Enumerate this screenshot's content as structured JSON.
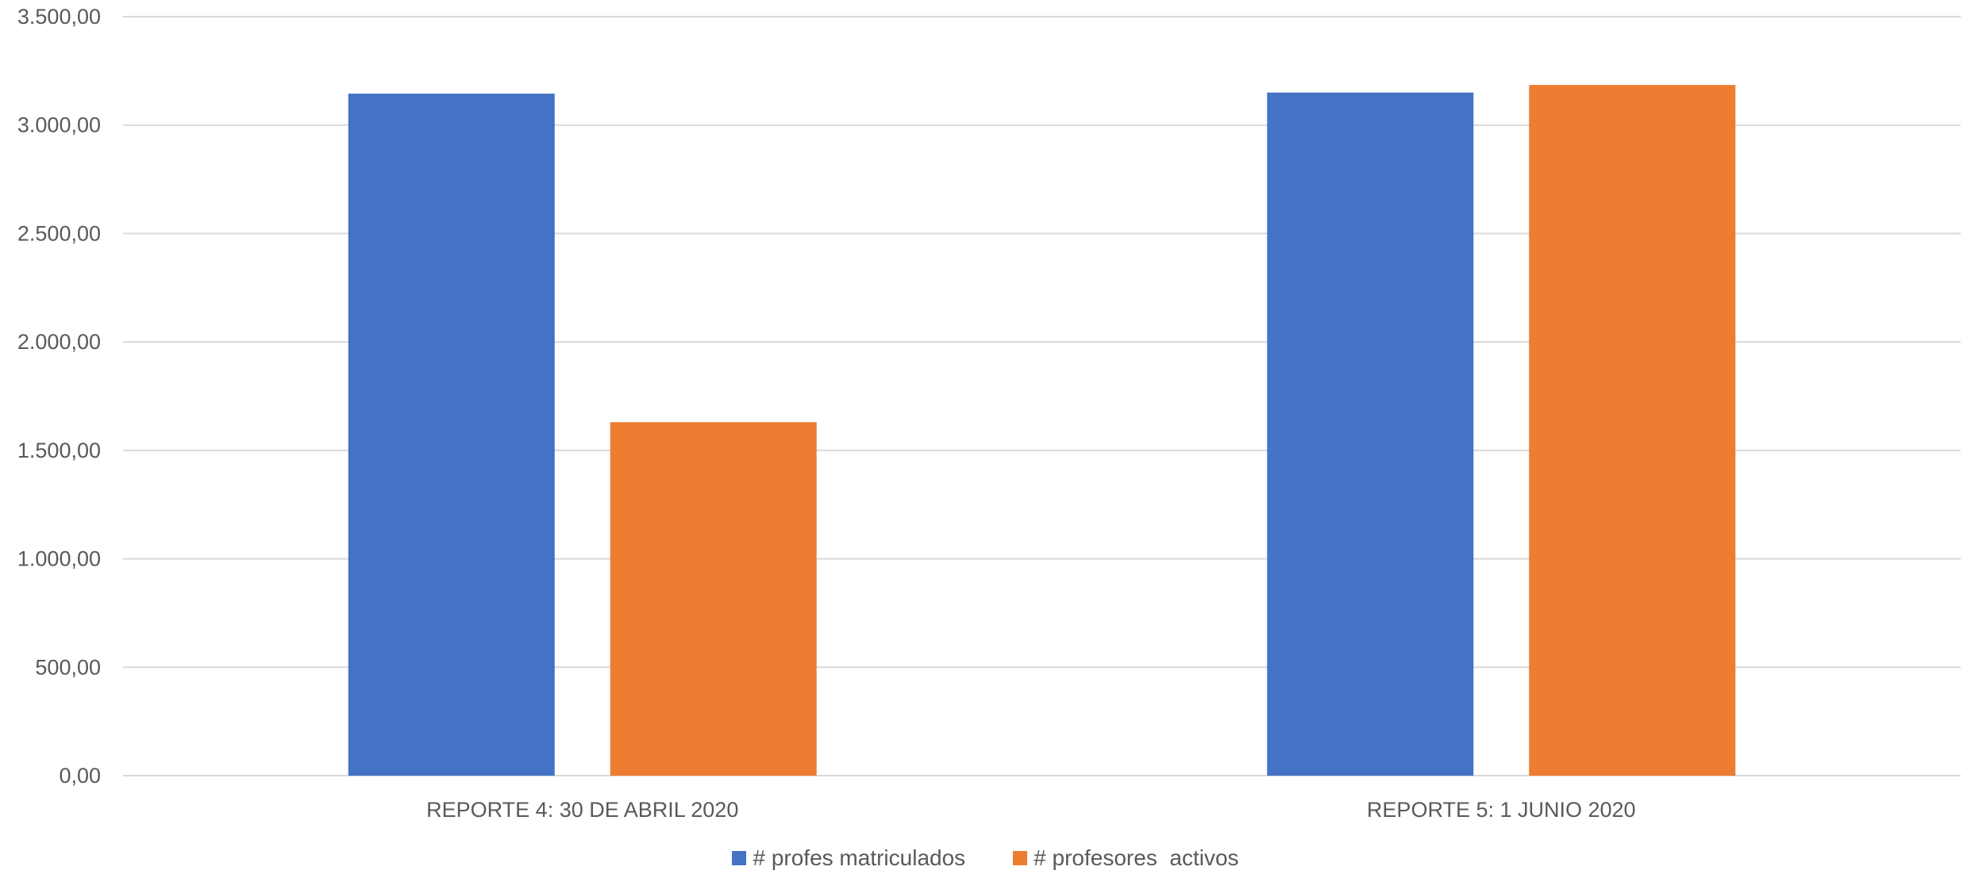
{
  "chart_data": {
    "type": "bar",
    "categories": [
      "REPORTE 4: 30 DE ABRIL 2020",
      "REPORTE 5: 1 JUNIO 2020"
    ],
    "series": [
      {
        "name": "# profes matriculados",
        "color": "#4472C4",
        "values": [
          3145,
          3150
        ]
      },
      {
        "name": "# profesores  activos",
        "color": "#ED7D31",
        "values": [
          1630,
          3185
        ]
      }
    ],
    "yticks": [
      "0,00",
      "500,00",
      "1.000,00",
      "1.500,00",
      "2.000,00",
      "2.500,00",
      "3.000,00",
      "3.500,00"
    ],
    "ylim": [
      0,
      3500
    ],
    "grid": true,
    "legend_position": "bottom",
    "title": "",
    "xlabel": "",
    "ylabel": ""
  }
}
